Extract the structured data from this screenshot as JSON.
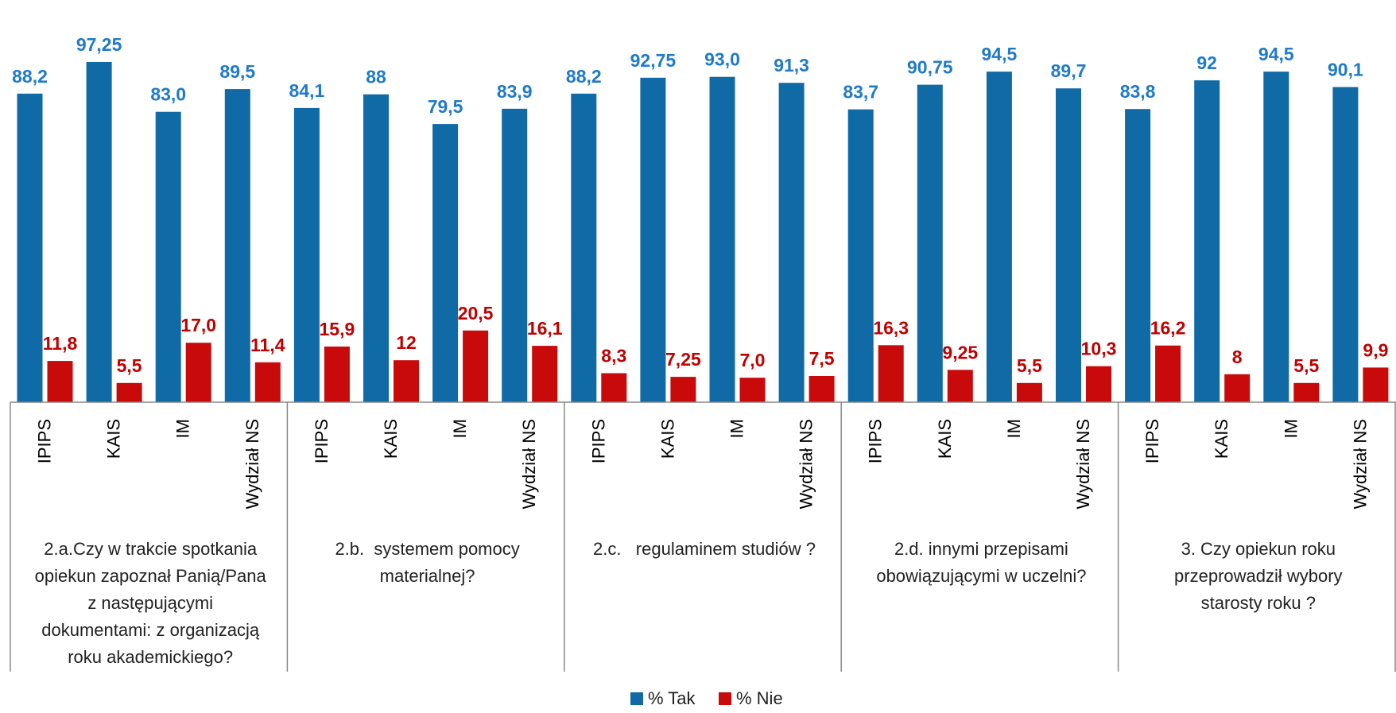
{
  "chart_data": {
    "type": "bar",
    "colors": {
      "tak": "#0f6aa6",
      "nie": "#c80a0a",
      "tak_label": "#1f7ac8",
      "nie_label": "#c00000",
      "axis": "#888888"
    },
    "groups": [
      {
        "label_lines": [
          "2.a.Czy w trakcie spotkania",
          "opiekun zapoznał Panią/Pana",
          "z następującymi",
          "dokumentami: z organizacją",
          "roku akademickiego?"
        ],
        "categories": [
          "IPIPS",
          "KAIS",
          "IM",
          "Wydział NS"
        ]
      },
      {
        "label_lines": [
          "2.b.  systemem pomocy",
          "materialnej?"
        ],
        "categories": [
          "IPIPS",
          "KAIS",
          "IM",
          "Wydział NS"
        ]
      },
      {
        "label_lines": [
          "2.c.   regulaminem studiów ?"
        ],
        "categories": [
          "IPIPS",
          "KAIS",
          "IM",
          "Wydział NS"
        ]
      },
      {
        "label_lines": [
          "2.d. innymi przepisami",
          "obowiązującymi w uczelni?"
        ],
        "categories": [
          "IPIPS",
          "KAIS",
          "IM",
          "Wydział NS"
        ]
      },
      {
        "label_lines": [
          "3. Czy opiekun roku",
          "przeprowadził wybory",
          "starosty roku ?"
        ],
        "categories": [
          "IPIPS",
          "KAIS",
          "IM",
          "Wydział NS"
        ]
      }
    ],
    "series": [
      {
        "name": "% Tak",
        "values": [
          88.2,
          97.25,
          83.0,
          89.5,
          84.1,
          88,
          79.5,
          83.9,
          88.2,
          92.75,
          93.0,
          91.3,
          83.7,
          90.75,
          94.5,
          89.7,
          83.8,
          92,
          94.5,
          90.1
        ],
        "labels": [
          "88,2",
          "97,25",
          "83,0",
          "89,5",
          "84,1",
          "88",
          "79,5",
          "83,9",
          "88,2",
          "92,75",
          "93,0",
          "91,3",
          "83,7",
          "90,75",
          "94,5",
          "89,7",
          "83,8",
          "92",
          "94,5",
          "90,1"
        ]
      },
      {
        "name": "% Nie",
        "values": [
          11.8,
          5.5,
          17.0,
          11.4,
          15.9,
          12,
          20.5,
          16.1,
          8.3,
          7.25,
          7.0,
          7.5,
          16.3,
          9.25,
          5.5,
          10.3,
          16.2,
          8,
          5.5,
          9.9
        ],
        "labels": [
          "11,8",
          "5,5",
          "17,0",
          "11,4",
          "15,9",
          "12",
          "20,5",
          "16,1",
          "8,3",
          "7,25",
          "7,0",
          "7,5",
          "16,3",
          "9,25",
          "5,5",
          "10,3",
          "16,2",
          "8",
          "5,5",
          "9,9"
        ]
      }
    ],
    "ylim": [
      0,
      100
    ],
    "legend": {
      "position": "bottom-center"
    }
  }
}
